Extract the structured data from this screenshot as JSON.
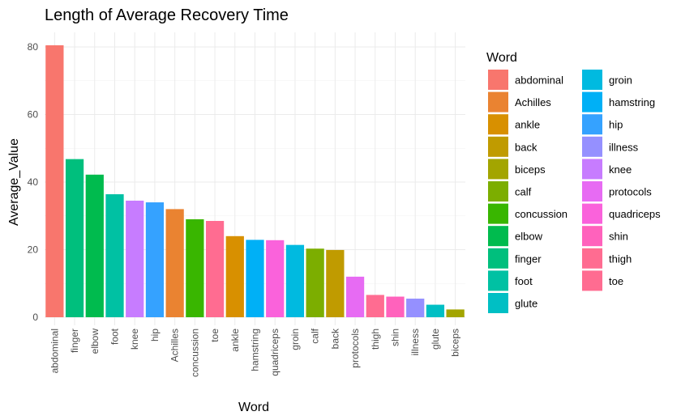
{
  "chart_data": {
    "type": "bar",
    "title": "Length of Average Recovery Time",
    "xlabel": "Word",
    "ylabel": "Average_Value",
    "ylim": [
      0,
      84
    ],
    "yticks": [
      0,
      20,
      40,
      60,
      80
    ],
    "grid": true,
    "legend_title": "Word",
    "legend_position": "right",
    "categories": [
      "abdominal",
      "finger",
      "elbow",
      "foot",
      "knee",
      "hip",
      "Achilles",
      "concussion",
      "toe",
      "ankle",
      "hamstring",
      "quadriceps",
      "groin",
      "calf",
      "back",
      "protocols",
      "thigh",
      "shin",
      "illness",
      "glute",
      "biceps"
    ],
    "values": [
      80.5,
      46.8,
      42.2,
      36.4,
      34.5,
      34.0,
      32.0,
      29.0,
      28.5,
      24.0,
      22.9,
      22.8,
      21.4,
      20.3,
      19.9,
      12.0,
      6.6,
      6.1,
      5.5,
      3.7,
      2.3
    ],
    "legend": [
      {
        "label": "abdominal",
        "color": "#F8766D"
      },
      {
        "label": "Achilles",
        "color": "#EA8331"
      },
      {
        "label": "ankle",
        "color": "#D89000"
      },
      {
        "label": "back",
        "color": "#C09B00"
      },
      {
        "label": "biceps",
        "color": "#A3A500"
      },
      {
        "label": "calf",
        "color": "#7CAE00"
      },
      {
        "label": "concussion",
        "color": "#39B600"
      },
      {
        "label": "elbow",
        "color": "#00BB4E"
      },
      {
        "label": "finger",
        "color": "#00BF7D"
      },
      {
        "label": "foot",
        "color": "#00C1A3"
      },
      {
        "label": "glute",
        "color": "#00BFC4"
      },
      {
        "label": "groin",
        "color": "#00BAE0"
      },
      {
        "label": "hamstring",
        "color": "#00B0F6"
      },
      {
        "label": "hip",
        "color": "#35A2FF"
      },
      {
        "label": "illness",
        "color": "#9590FF"
      },
      {
        "label": "knee",
        "color": "#C77CFF"
      },
      {
        "label": "protocols",
        "color": "#E76BF3"
      },
      {
        "label": "quadriceps",
        "color": "#FA62DB"
      },
      {
        "label": "shin",
        "color": "#FF62BC"
      },
      {
        "label": "thigh",
        "color": "#FF6C91"
      },
      {
        "label": "toe",
        "color": "#FF6C91"
      }
    ]
  }
}
